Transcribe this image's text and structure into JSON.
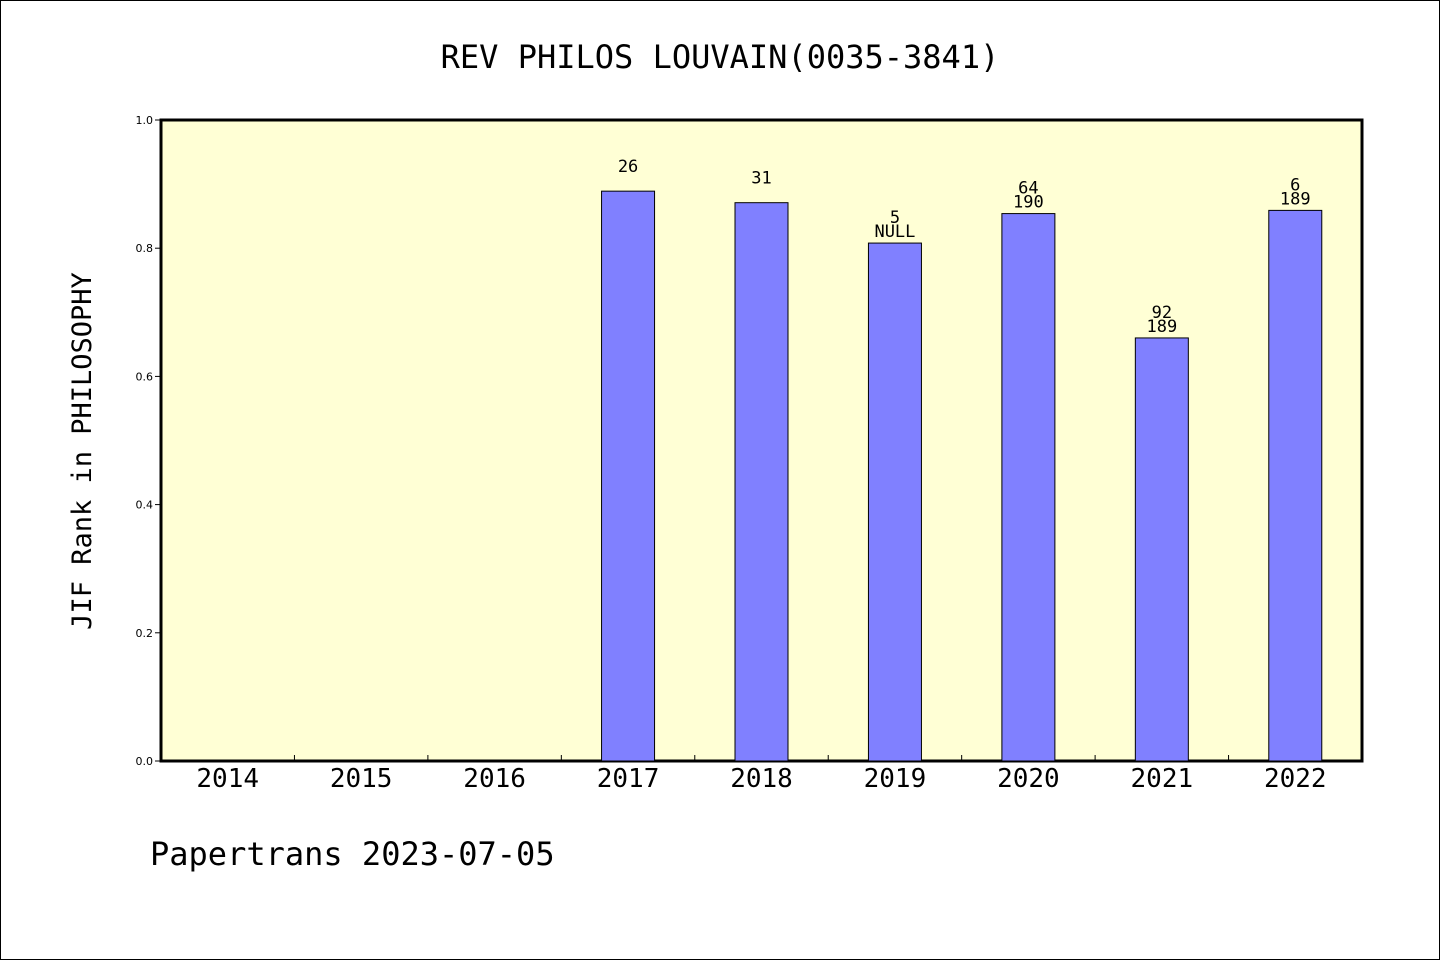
{
  "chart_data": {
    "type": "bar",
    "title": "REV PHILOS LOUVAIN(0035-3841)",
    "ylabel": "JIF Rank in PHILOSOPHY",
    "xlabel": "",
    "ylim": [
      0,
      1.0
    ],
    "yticks": [
      "0.0",
      "0.2",
      "0.4",
      "0.6",
      "0.8",
      "1.0"
    ],
    "categories": [
      "2014",
      "2015",
      "2016",
      "2017",
      "2018",
      "2019",
      "2020",
      "2021",
      "2022"
    ],
    "values": [
      null,
      null,
      null,
      0.889,
      0.871,
      0.808,
      0.854,
      0.66,
      0.859
    ],
    "labels": [
      [],
      [],
      [],
      [
        "26"
      ],
      [
        "31"
      ],
      [
        "5",
        "NULL"
      ],
      [
        "64",
        "190"
      ],
      [
        "92",
        "189"
      ],
      [
        "6",
        "189"
      ]
    ],
    "grid": false,
    "colors": {
      "plot_background": "#ffffd5",
      "bar_fill": "#8080ff",
      "bar_stroke": "#000000"
    }
  },
  "footer": "Papertrans 2023-07-05"
}
